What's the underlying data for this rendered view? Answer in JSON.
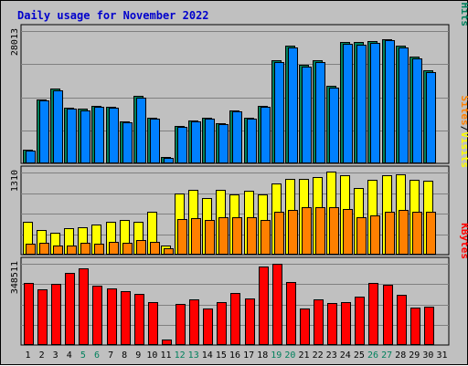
{
  "chart_data": {
    "type": "bar",
    "title": "Daily usage for November 2022",
    "title_color": "#0000cc",
    "days": [
      "1",
      "2",
      "3",
      "4",
      "5",
      "6",
      "7",
      "8",
      "9",
      "10",
      "11",
      "12",
      "13",
      "14",
      "15",
      "16",
      "17",
      "18",
      "19",
      "20",
      "21",
      "22",
      "23",
      "24",
      "25",
      "26",
      "27",
      "28",
      "29",
      "30",
      "31"
    ],
    "weekend_days": [
      "5",
      "6",
      "12",
      "13",
      "19",
      "20",
      "26",
      "27"
    ],
    "colors": {
      "hits": "#00805c",
      "files": "#0080ff",
      "pages": "#00c0ff",
      "visits": "#ffff00",
      "sites": "#ff8000",
      "kbytes": "#ff0000",
      "weekday_label": "#000000",
      "weekend_label": "#00805c"
    },
    "panels": [
      {
        "name": "hits-files-pages",
        "max_label": "28013",
        "ymax": 28013,
        "label_parts": [
          {
            "text": "Hits",
            "color": "#00805c"
          },
          {
            "text": "/",
            "color": "#000000"
          },
          {
            "text": "Files",
            "color": "#0080ff"
          },
          {
            "text": "/",
            "color": "#000000"
          },
          {
            "text": "Pages",
            "color": "#00c0ff"
          }
        ],
        "series": [
          {
            "key": "hits",
            "values": [
              2900,
              13600,
              15800,
              11800,
              11500,
              12100,
              11900,
              8800,
              14300,
              9600,
              1300,
              7900,
              9000,
              9600,
              8500,
              11300,
              9600,
              12100,
              21800,
              25000,
              20800,
              21900,
              16400,
              25700,
              25600,
              25900,
              26300,
              24900,
              22600,
              19700
            ]
          },
          {
            "key": "files",
            "values": [
              2700,
              13300,
              15500,
              11600,
              11300,
              11900,
              11700,
              8600,
              14000,
              9400,
              1200,
              7700,
              8800,
              9400,
              8300,
              11000,
              9400,
              11900,
              21400,
              24600,
              20400,
              21500,
              16100,
              25300,
              25200,
              25500,
              26000,
              24500,
              22200,
              19300
            ]
          }
        ]
      },
      {
        "name": "visits-sites",
        "max_label": "1310",
        "ymax": 1310,
        "label_parts": [
          {
            "text": "Visits",
            "color": "#ffff00"
          },
          {
            "text": "/",
            "color": "#000000"
          },
          {
            "text": "Sites",
            "color": "#ff8000"
          }
        ],
        "series": [
          {
            "key": "visits",
            "values": [
              530,
              400,
              350,
              420,
              440,
              480,
              520,
              550,
              530,
              690,
              140,
              970,
              1040,
              900,
              1030,
              960,
              1020,
              960,
              1140,
              1210,
              1210,
              1230,
              1320,
              1270,
              1060,
              1190,
              1270,
              1280,
              1190,
              1180
            ]
          },
          {
            "key": "sites",
            "values": [
              170,
              190,
              140,
              150,
              190,
              170,
              200,
              190,
              230,
              210,
              100,
              570,
              580,
              550,
              600,
              590,
              600,
              560,
              690,
              720,
              750,
              750,
              750,
              730,
              600,
              630,
              690,
              710,
              680,
              690
            ]
          }
        ]
      },
      {
        "name": "kbytes",
        "max_label": "348511",
        "ymax": 348511,
        "label_parts": [
          {
            "text": "KBytes",
            "color": "#ff0000"
          }
        ],
        "series": [
          {
            "key": "kbytes",
            "values": [
              265000,
              240000,
              263000,
              310000,
              330000,
              253000,
              242000,
              230000,
              218000,
              186000,
              22000,
              178000,
              197000,
              158000,
              185000,
              225000,
              200000,
              337000,
              348511,
              272000,
              156000,
              194000,
              180000,
              185000,
              208000,
              266000,
              260000,
              215000,
              162000,
              165000
            ]
          }
        ]
      }
    ]
  }
}
